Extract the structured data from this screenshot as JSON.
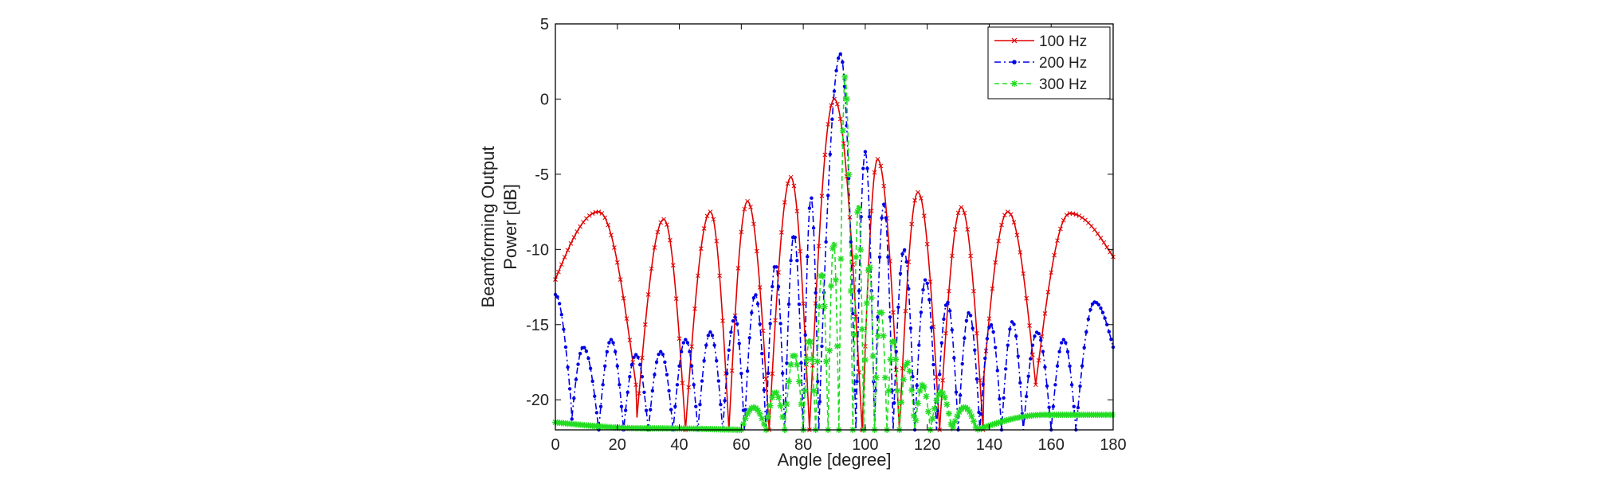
{
  "chart_data": {
    "type": "line",
    "title": "",
    "xlabel": "Angle [degree]",
    "ylabel_lines": [
      "Beamforming Output",
      "Power [dB]"
    ],
    "xlim": [
      0,
      180
    ],
    "ylim": [
      -22,
      5
    ],
    "xticks": [
      0,
      20,
      40,
      60,
      80,
      100,
      120,
      140,
      160,
      180
    ],
    "yticks": [
      5,
      0,
      -5,
      -10,
      -15,
      -20
    ],
    "grid": false,
    "legend_position": "top-right",
    "floor": -22,
    "series": [
      {
        "name": "100 Hz",
        "color": "#e00000",
        "dash": "solid",
        "marker": "x",
        "lobes": [
          {
            "null_start": 0,
            "null_end": 26,
            "peak_x": 14,
            "peak_y": -7.5,
            "start_y": -12,
            "null_y": -19
          },
          {
            "null_start": 26,
            "null_end": 42,
            "peak_x": 35,
            "peak_y": -8,
            "null_y": -22
          },
          {
            "null_start": 42,
            "null_end": 56,
            "peak_x": 50,
            "peak_y": -7.5,
            "null_y": -22
          },
          {
            "null_start": 56,
            "null_end": 69,
            "peak_x": 62,
            "peak_y": -6.8,
            "null_y": -22
          },
          {
            "null_start": 69,
            "null_end": 82,
            "peak_x": 76,
            "peak_y": -5.2,
            "null_y": -22
          },
          {
            "null_start": 82,
            "null_end": 99,
            "peak_x": 90,
            "peak_y": 0,
            "null_y": -22
          },
          {
            "null_start": 99,
            "null_end": 111,
            "peak_x": 104,
            "peak_y": -4,
            "null_y": -22
          },
          {
            "null_start": 111,
            "null_end": 124,
            "peak_x": 117,
            "peak_y": -6.2,
            "null_y": -22
          },
          {
            "null_start": 124,
            "null_end": 138,
            "peak_x": 131,
            "peak_y": -7.2,
            "null_y": -22
          },
          {
            "null_start": 138,
            "null_end": 155,
            "peak_x": 146,
            "peak_y": -7.5,
            "null_y": -19
          },
          {
            "null_start": 155,
            "null_end": 180,
            "peak_x": 166,
            "peak_y": -7.6,
            "null_y": -19,
            "end_y": -10.5
          }
        ]
      },
      {
        "name": "200 Hz",
        "color": "#0000e6",
        "dash": "dashdot",
        "marker": "dot",
        "lobes": [
          {
            "null_start": 0,
            "null_end": 5,
            "peak_x": 0,
            "peak_y": -13,
            "start_y": -13,
            "null_y": -20
          },
          {
            "null_start": 5,
            "null_end": 14,
            "peak_x": 9,
            "peak_y": -16.5,
            "null_y": -22
          },
          {
            "null_start": 14,
            "null_end": 22,
            "peak_x": 18,
            "peak_y": -16,
            "null_y": -22
          },
          {
            "null_start": 22,
            "null_end": 30,
            "peak_x": 26,
            "peak_y": -17,
            "null_y": -22
          },
          {
            "null_start": 30,
            "null_end": 38,
            "peak_x": 34,
            "peak_y": -16.8,
            "null_y": -22
          },
          {
            "null_start": 38,
            "null_end": 46,
            "peak_x": 42,
            "peak_y": -16,
            "null_y": -22
          },
          {
            "null_start": 46,
            "null_end": 54,
            "peak_x": 50,
            "peak_y": -15.5,
            "null_y": -22
          },
          {
            "null_start": 54,
            "null_end": 61,
            "peak_x": 58,
            "peak_y": -14.5,
            "null_y": -22
          },
          {
            "null_start": 61,
            "null_end": 68,
            "peak_x": 64.5,
            "peak_y": -13,
            "null_y": -22
          },
          {
            "null_start": 68,
            "null_end": 74,
            "peak_x": 71,
            "peak_y": -11,
            "null_y": -22
          },
          {
            "null_start": 74,
            "null_end": 80,
            "peak_x": 77,
            "peak_y": -9,
            "null_y": -22
          },
          {
            "null_start": 80,
            "null_end": 85,
            "peak_x": 82.5,
            "peak_y": -6.5,
            "null_y": -22
          },
          {
            "null_start": 85,
            "null_end": 97,
            "peak_x": 92,
            "peak_y": 3,
            "null_y": -22
          },
          {
            "null_start": 97,
            "null_end": 103,
            "peak_x": 100,
            "peak_y": -3.5,
            "null_y": -22
          },
          {
            "null_start": 103,
            "null_end": 109,
            "peak_x": 106,
            "peak_y": -7,
            "null_y": -22
          },
          {
            "null_start": 109,
            "null_end": 116,
            "peak_x": 112.5,
            "peak_y": -10,
            "null_y": -22
          },
          {
            "null_start": 116,
            "null_end": 123,
            "peak_x": 119.5,
            "peak_y": -12,
            "null_y": -22
          },
          {
            "null_start": 123,
            "null_end": 130,
            "peak_x": 126.5,
            "peak_y": -13.5,
            "null_y": -22
          },
          {
            "null_start": 130,
            "null_end": 137,
            "peak_x": 133.5,
            "peak_y": -14.2,
            "null_y": -22
          },
          {
            "null_start": 137,
            "null_end": 144,
            "peak_x": 140.5,
            "peak_y": -15,
            "null_y": -22
          },
          {
            "null_start": 144,
            "null_end": 151,
            "peak_x": 147.5,
            "peak_y": -14.8,
            "null_y": -22
          },
          {
            "null_start": 151,
            "null_end": 160,
            "peak_x": 155.5,
            "peak_y": -15.5,
            "null_y": -22
          },
          {
            "null_start": 160,
            "null_end": 168,
            "peak_x": 164,
            "peak_y": -16,
            "null_y": -22
          },
          {
            "null_start": 168,
            "null_end": 180,
            "peak_x": 174,
            "peak_y": -13.5,
            "null_y": -22,
            "end_y": -16.5
          }
        ]
      },
      {
        "name": "300 Hz",
        "color": "#22dd22",
        "dash": "dashed",
        "marker": "star",
        "lobes": [
          {
            "null_start": 0,
            "null_end": 60,
            "peak_x": 30,
            "peak_y": -21.9,
            "start_y": -21.5,
            "null_y": -22
          },
          {
            "null_start": 60,
            "null_end": 68,
            "peak_x": 64,
            "peak_y": -20.5,
            "null_y": -22
          },
          {
            "null_start": 68,
            "null_end": 74,
            "peak_x": 71,
            "peak_y": -19.5,
            "null_y": -22
          },
          {
            "null_start": 74,
            "null_end": 80,
            "peak_x": 77,
            "peak_y": -17,
            "null_y": -22
          },
          {
            "null_start": 80,
            "null_end": 84,
            "peak_x": 82,
            "peak_y": -16,
            "null_y": -22
          },
          {
            "null_start": 84,
            "null_end": 88,
            "peak_x": 86,
            "peak_y": -11.5,
            "null_y": -22
          },
          {
            "null_start": 88,
            "null_end": 91.5,
            "peak_x": 89.8,
            "peak_y": -9.5,
            "null_y": -22
          },
          {
            "null_start": 91.5,
            "null_end": 96,
            "peak_x": 93.5,
            "peak_y": 1.5,
            "null_y": -22
          },
          {
            "null_start": 96,
            "null_end": 99.5,
            "peak_x": 97.8,
            "peak_y": -7,
            "null_y": -22
          },
          {
            "null_start": 99.5,
            "null_end": 103,
            "peak_x": 101.3,
            "peak_y": -11,
            "null_y": -22
          },
          {
            "null_start": 103,
            "null_end": 107,
            "peak_x": 105,
            "peak_y": -14,
            "null_y": -22
          },
          {
            "null_start": 107,
            "null_end": 111,
            "peak_x": 109,
            "peak_y": -16,
            "null_y": -22
          },
          {
            "null_start": 111,
            "null_end": 116,
            "peak_x": 113.5,
            "peak_y": -17.5,
            "null_y": -22
          },
          {
            "null_start": 116,
            "null_end": 121,
            "peak_x": 118.5,
            "peak_y": -19,
            "null_y": -22
          },
          {
            "null_start": 121,
            "null_end": 128,
            "peak_x": 124.5,
            "peak_y": -19.5,
            "null_y": -22
          },
          {
            "null_start": 128,
            "null_end": 136,
            "peak_x": 132,
            "peak_y": -20.5,
            "null_y": -22
          },
          {
            "null_start": 136,
            "null_end": 180,
            "peak_x": 158,
            "peak_y": -21,
            "null_y": -22,
            "end_y": -21
          }
        ]
      }
    ]
  }
}
